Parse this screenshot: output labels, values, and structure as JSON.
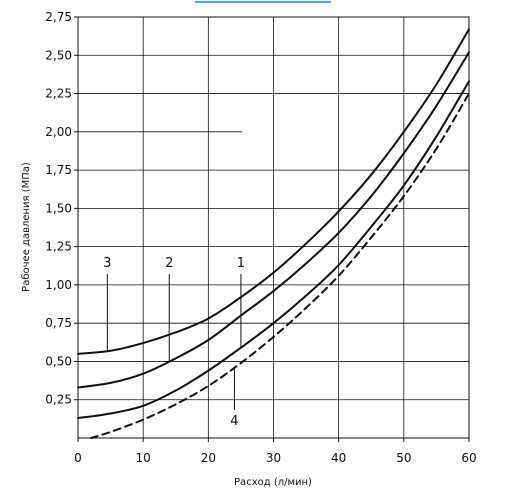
{
  "chart_data": {
    "type": "line",
    "title": "",
    "xlabel": "Расход (л/мин)",
    "ylabel": "Рабочее давления (МПа)",
    "xlim": [
      0,
      60
    ],
    "ylim": [
      0,
      2.75
    ],
    "x_ticks": [
      "0",
      "10",
      "20",
      "30",
      "40",
      "50",
      "60"
    ],
    "y_ticks": [
      "0,25",
      "0,50",
      "0,75",
      "1,00",
      "1,25",
      "1,50",
      "1,75",
      "2,00",
      "2,25",
      "2,50",
      "2,75"
    ],
    "x_tick_values": [
      0,
      10,
      20,
      30,
      40,
      50,
      60
    ],
    "y_tick_values": [
      0.25,
      0.5,
      0.75,
      1.0,
      1.25,
      1.5,
      1.75,
      2.0,
      2.25,
      2.5,
      2.75
    ],
    "grid": true,
    "series": [
      {
        "label": "1",
        "style": "solid",
        "x": [
          0,
          5,
          10,
          15,
          20,
          25,
          30,
          35,
          40,
          45,
          50,
          55,
          60
        ],
        "y": [
          0.13,
          0.16,
          0.21,
          0.31,
          0.44,
          0.59,
          0.75,
          0.93,
          1.13,
          1.38,
          1.65,
          1.97,
          2.33
        ]
      },
      {
        "label": "2",
        "style": "solid",
        "x": [
          0,
          5,
          10,
          15,
          20,
          25,
          30,
          35,
          40,
          45,
          50,
          55,
          60
        ],
        "y": [
          0.33,
          0.36,
          0.42,
          0.52,
          0.64,
          0.8,
          0.96,
          1.14,
          1.34,
          1.58,
          1.86,
          2.17,
          2.52
        ]
      },
      {
        "label": "3",
        "style": "solid",
        "x": [
          0,
          5,
          10,
          15,
          20,
          25,
          30,
          35,
          40,
          45,
          50,
          55,
          60
        ],
        "y": [
          0.55,
          0.57,
          0.62,
          0.69,
          0.78,
          0.92,
          1.08,
          1.27,
          1.48,
          1.72,
          2.0,
          2.31,
          2.67
        ]
      },
      {
        "label": "4",
        "style": "dashed",
        "x": [
          2,
          5,
          10,
          15,
          20,
          25,
          30,
          35,
          40,
          45,
          50,
          55,
          60
        ],
        "y": [
          0.0,
          0.04,
          0.12,
          0.22,
          0.34,
          0.49,
          0.66,
          0.85,
          1.06,
          1.31,
          1.58,
          1.89,
          2.25
        ]
      }
    ],
    "annotations": [
      {
        "text": "3",
        "series": "3",
        "leader_x": 4.5
      },
      {
        "text": "2",
        "series": "2",
        "leader_x": 14.0
      },
      {
        "text": "1",
        "series": "1",
        "leader_x": 25.0
      },
      {
        "text": "4",
        "series": "4",
        "leader_x": 24.0
      }
    ],
    "colors": {
      "axis": "#111111",
      "grid": "#111111",
      "line": "#111111",
      "top_accent": "#4aa3ff"
    }
  }
}
